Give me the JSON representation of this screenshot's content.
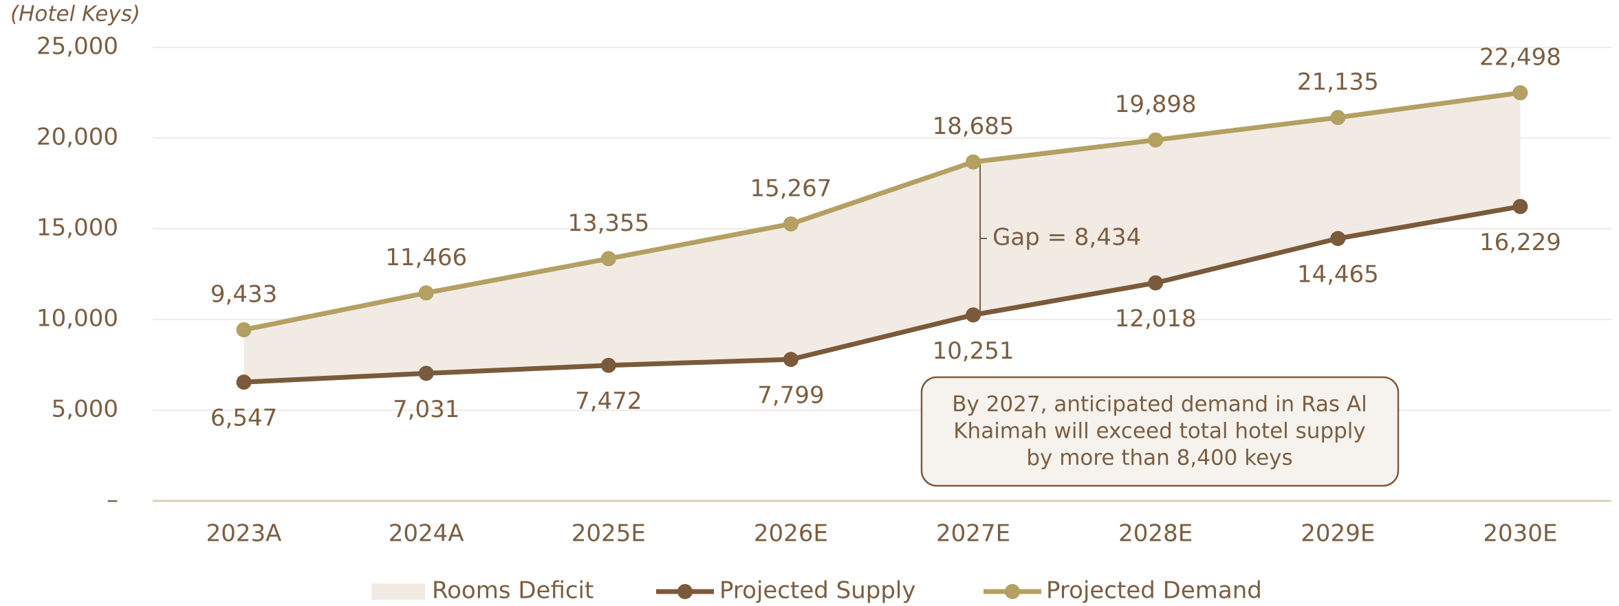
{
  "chart_data": {
    "type": "line",
    "y_axis_label": "(Hotel Keys)",
    "categories": [
      "2023A",
      "2024A",
      "2025E",
      "2026E",
      "2027E",
      "2028E",
      "2029E",
      "2030E"
    ],
    "area": {
      "name": "Rooms Deficit",
      "color": "#f2ebe4"
    },
    "series": [
      {
        "name": "Projected Supply",
        "color": "#7a5a3a",
        "values": [
          6547,
          7031,
          7472,
          7799,
          10251,
          12018,
          14465,
          16229
        ],
        "value_labels": [
          "6,547",
          "7,031",
          "7,472",
          "7,799",
          "10,251",
          "12,018",
          "14,465",
          "16,229"
        ]
      },
      {
        "name": "Projected Demand",
        "color": "#b3a062",
        "values": [
          9433,
          11466,
          13355,
          15267,
          18685,
          19898,
          21135,
          22498
        ],
        "value_labels": [
          "9,433",
          "11,466",
          "13,355",
          "15,267",
          "18,685",
          "19,898",
          "21,135",
          "22,498"
        ]
      }
    ],
    "ylim": [
      0,
      25000
    ],
    "yticks": [
      {
        "value": 0,
        "label": "–"
      },
      {
        "value": 5000,
        "label": "5,000"
      },
      {
        "value": 10000,
        "label": "10,000"
      },
      {
        "value": 15000,
        "label": "15,000"
      },
      {
        "value": 20000,
        "label": "20,000"
      },
      {
        "value": 25000,
        "label": "25,000"
      }
    ],
    "grid": true,
    "gap": {
      "value": 8434,
      "label": "Gap = 8,434"
    },
    "callout": [
      "By 2027, anticipated demand in Ras Al",
      "Khaimah will exceed total hotel supply",
      "by more than 8,400 keys"
    ]
  }
}
